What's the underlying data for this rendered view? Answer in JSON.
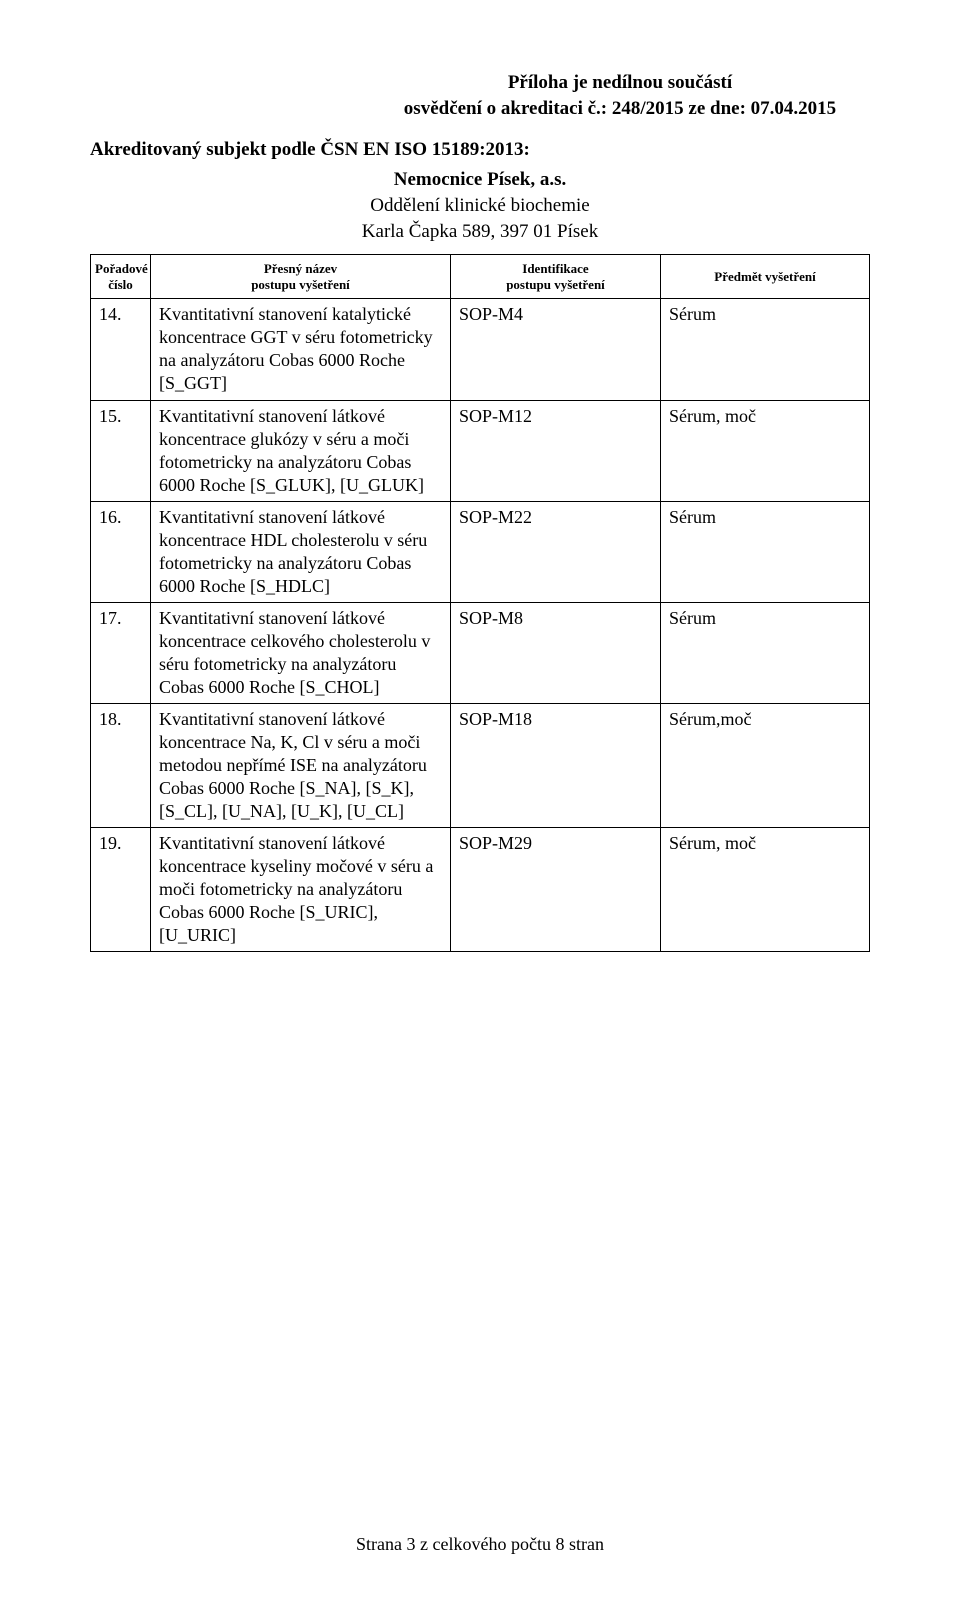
{
  "header": {
    "line1": "Příloha je nedílnou součástí",
    "line2": "osvědčení o akreditaci č.: 248/2015 ze dne: 07.04.2015"
  },
  "accredited_line": "Akreditovaný subjekt podle ČSN EN ISO 15189:2013:",
  "center": {
    "title": "Nemocnice Písek, a.s.",
    "dept": "Oddělení klinické biochemie",
    "address": "Karla Čapka 589, 397 01 Písek"
  },
  "table": {
    "headers": {
      "num_l1": "Pořadové",
      "num_l2": "číslo",
      "name_l1": "Přesný název",
      "name_l2": "postupu vyšetření",
      "id_l1": "Identifikace",
      "id_l2": "postupu vyšetření",
      "subj": "Předmět vyšetření"
    },
    "rows": [
      {
        "num": "14.",
        "name": "Kvantitativní stanovení katalytické koncentrace GGT v séru fotometricky na analyzátoru Cobas 6000 Roche [S_GGT]",
        "id": "SOP-M4",
        "subj": "Sérum"
      },
      {
        "num": "15.",
        "name": "Kvantitativní stanovení látkové koncentrace glukózy v séru a moči fotometricky na analyzátoru Cobas 6000 Roche [S_GLUK], [U_GLUK]",
        "id": "SOP-M12",
        "subj": "Sérum, moč"
      },
      {
        "num": "16.",
        "name": "Kvantitativní stanovení látkové koncentrace HDL cholesterolu v séru fotometricky na analyzátoru Cobas 6000 Roche [S_HDLC]",
        "id": "SOP-M22",
        "subj": "Sérum"
      },
      {
        "num": "17.",
        "name": "Kvantitativní stanovení látkové koncentrace celkového cholesterolu v séru fotometricky na analyzátoru Cobas 6000 Roche [S_CHOL]",
        "id": "SOP-M8",
        "subj": "Sérum"
      },
      {
        "num": "18.",
        "name": "Kvantitativní stanovení látkové koncentrace Na, K, Cl v séru a moči metodou nepřímé ISE na analyzátoru Cobas 6000 Roche  [S_NA], [S_K], [S_CL], [U_NA], [U_K], [U_CL]",
        "id": "SOP-M18",
        "subj": "Sérum,moč"
      },
      {
        "num": "19.",
        "name": "Kvantitativní stanovení látkové koncentrace kyseliny močové v séru a moči fotometricky na analyzátoru Cobas 6000 Roche [S_URIC], [U_URIC]",
        "id": "SOP-M29",
        "subj": "Sérum, moč"
      }
    ]
  },
  "footer": "Strana 3 z celkového počtu 8 stran"
}
